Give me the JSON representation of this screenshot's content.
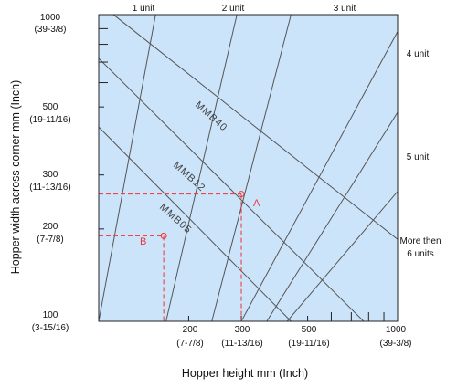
{
  "colors": {
    "plot_background": "#cce4fa",
    "grid_line": "#555555",
    "axis": "#222222",
    "marker": "#ee3333"
  },
  "chart_data": {
    "type": "line",
    "scale": "log-log",
    "xlabel": "Hopper height  mm (Inch)",
    "ylabel": "Hopper width across corner  mm (Inch)",
    "xlim": [
      100,
      1000
    ],
    "ylim": [
      100,
      1000
    ],
    "x_ticks": [
      {
        "value": 200,
        "label": "200",
        "sublabel": "(7-7/8)"
      },
      {
        "value": 300,
        "label": "300",
        "sublabel": "(11-13/16)"
      },
      {
        "value": 500,
        "label": "500",
        "sublabel": "(19-11/16)"
      },
      {
        "value": 1000,
        "label": "1000",
        "sublabel": "(39-3/8)"
      }
    ],
    "y_ticks": [
      {
        "value": 100,
        "label": "100",
        "sublabel": "(3-15/16)"
      },
      {
        "value": 200,
        "label": "200",
        "sublabel": "(7-7/8)"
      },
      {
        "value": 300,
        "label": "300",
        "sublabel": "(11-13/16)"
      },
      {
        "value": 500,
        "label": "500",
        "sublabel": "(19-11/16)"
      },
      {
        "value": 1000,
        "label": "1000",
        "sublabel": "(39-3/8)"
      }
    ],
    "model_lines": [
      {
        "name": "MMB40",
        "points": [
          [
            112,
            1000
          ],
          [
            1000,
            185
          ]
        ]
      },
      {
        "name": "MMB12",
        "points": [
          [
            100,
            720
          ],
          [
            770,
            100
          ]
        ]
      },
      {
        "name": "MMB05",
        "points": [
          [
            100,
            430
          ],
          [
            440,
            100
          ]
        ]
      }
    ],
    "unit_lines": [
      {
        "name": "1 unit",
        "points": [
          [
            100,
            100
          ],
          [
            155,
            1000
          ]
        ]
      },
      {
        "name": "2 unit",
        "points": [
          [
            168,
            100
          ],
          [
            290,
            1000
          ]
        ]
      },
      {
        "name": "3 unit",
        "points": [
          [
            239,
            100
          ],
          [
            440,
            1000
          ]
        ]
      },
      {
        "name": "4 unit",
        "points": [
          [
            300,
            100
          ],
          [
            1000,
            880
          ]
        ]
      },
      {
        "name": "5 unit",
        "points": [
          [
            365,
            100
          ],
          [
            1000,
            480
          ]
        ]
      },
      {
        "name": "More then 6 units",
        "points": [
          [
            427,
            100
          ],
          [
            1000,
            265
          ]
        ]
      }
    ],
    "unit_labels": {
      "top": [
        "1 unit",
        "2 unit",
        "3 unit"
      ],
      "right": [
        "4 unit",
        "5 unit",
        "More then",
        "6 units"
      ]
    },
    "points": [
      {
        "name": "A",
        "x": 300,
        "y": 260
      },
      {
        "name": "B",
        "x": 165,
        "y": 190
      }
    ],
    "grid": false,
    "right_edge_ticks": [
      600,
      700,
      800,
      900
    ],
    "left_edge_ticks": [
      600,
      700,
      800,
      900
    ]
  }
}
